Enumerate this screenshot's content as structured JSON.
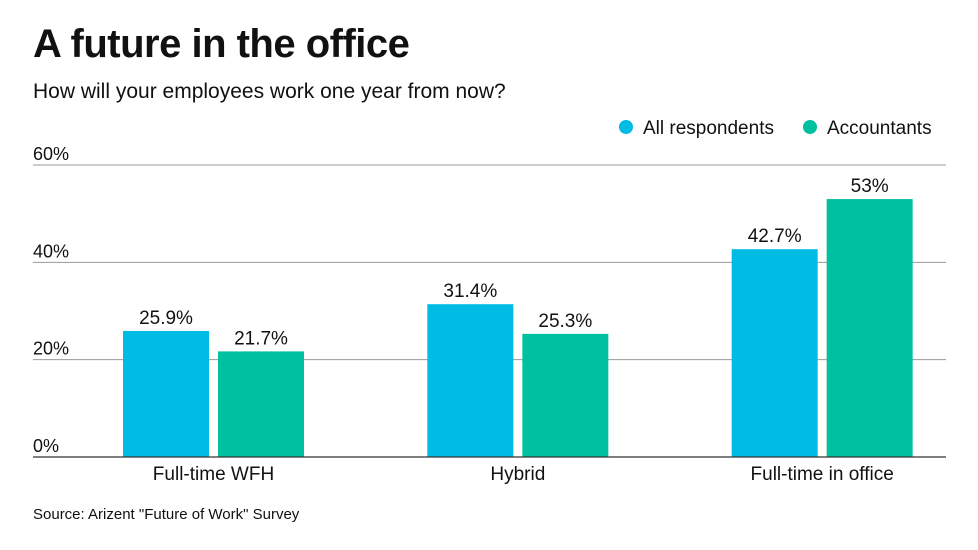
{
  "chart_data": {
    "type": "bar",
    "title": "A future in the office",
    "subtitle": "How will your employees work one year from now?",
    "categories": [
      "Full-time WFH",
      "Hybrid",
      "Full-time in office"
    ],
    "series": [
      {
        "name": "All respondents",
        "color": "#00bbe4",
        "values": [
          25.9,
          31.4,
          42.7
        ],
        "labels": [
          "25.9%",
          "31.4%",
          "42.7%"
        ]
      },
      {
        "name": "Accountants",
        "color": "#00c19f",
        "values": [
          21.7,
          25.3,
          53
        ],
        "labels": [
          "21.7%",
          "25.3%",
          "53%"
        ]
      }
    ],
    "yticks": [
      0,
      20,
      40,
      60
    ],
    "ytick_labels": [
      "0%",
      "20%",
      "40%",
      "60%"
    ],
    "ylim": [
      0,
      60
    ],
    "grid": true,
    "legend_position": "top-right",
    "xlabel": "",
    "ylabel": ""
  },
  "source": "Source: Arizent \"Future of Work\" Survey",
  "colors": {
    "gridline": "#9a9a9a",
    "axis": "#333333",
    "text": "#111111"
  }
}
